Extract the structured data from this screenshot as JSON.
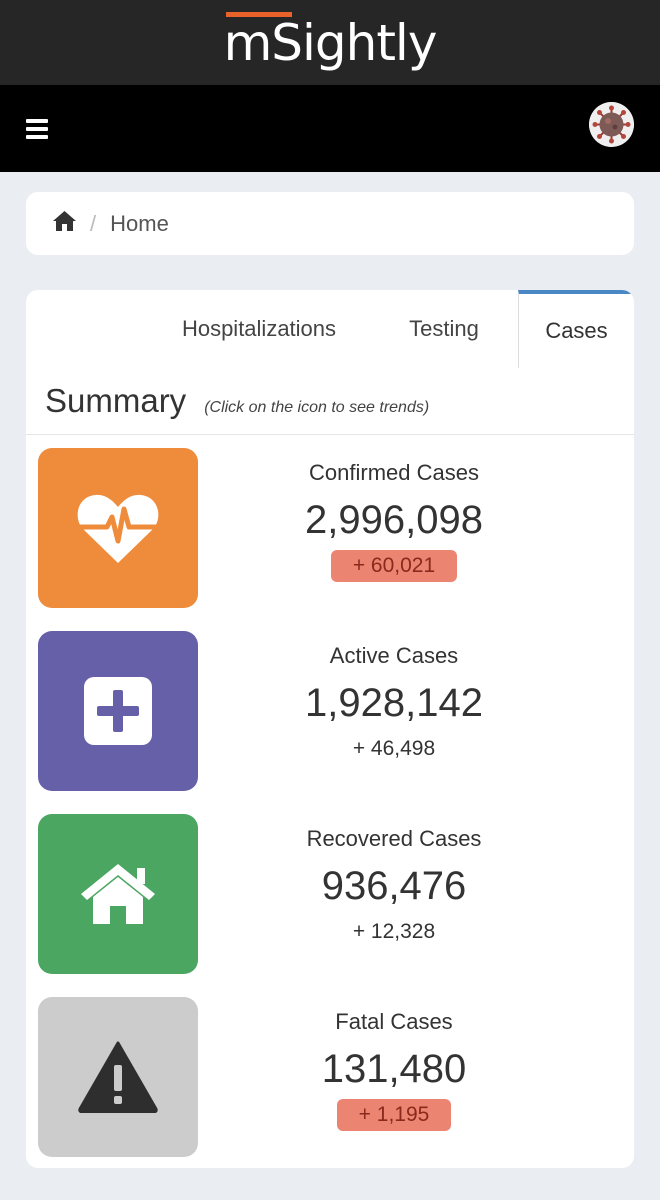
{
  "brand": {
    "name": "mSightly",
    "accent": "#e8622a"
  },
  "nav": {
    "menu_icon": "hamburger-icon",
    "avatar_icon": "virus-avatar-icon"
  },
  "breadcrumb": {
    "home_icon": "home-icon",
    "separator": "/",
    "current": "Home"
  },
  "tabs": [
    {
      "label": "Hospitalizations",
      "active": false
    },
    {
      "label": "Testing",
      "active": false
    },
    {
      "label": "Cases",
      "active": true
    }
  ],
  "summary": {
    "title": "Summary",
    "hint": "(Click on the icon to see trends)"
  },
  "stats": [
    {
      "label": "Confirmed Cases",
      "value": "2,996,098",
      "change": "+ 60,021",
      "icon": "heartbeat-icon",
      "color": "#ef8c3c",
      "highlighted": true
    },
    {
      "label": "Active Cases",
      "value": "1,928,142",
      "change": "+ 46,498",
      "icon": "plus-square-icon",
      "color": "#6660a8",
      "highlighted": false
    },
    {
      "label": "Recovered Cases",
      "value": "936,476",
      "change": "+ 12,328",
      "icon": "house-icon",
      "color": "#4aa661",
      "highlighted": false
    },
    {
      "label": "Fatal Cases",
      "value": "131,480",
      "change": "+ 1,195",
      "icon": "warning-icon",
      "color": "#cccccc",
      "highlighted": true
    }
  ]
}
